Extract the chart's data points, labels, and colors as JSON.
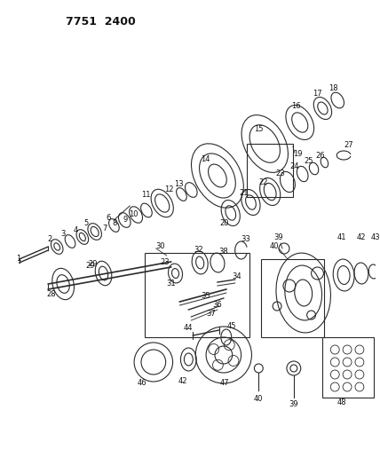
{
  "title": "7751  2400",
  "bg_color": "#ffffff",
  "line_color": "#2a2a2a",
  "label_color": "#111111",
  "figsize": [
    4.28,
    5.33
  ],
  "dpi": 100
}
